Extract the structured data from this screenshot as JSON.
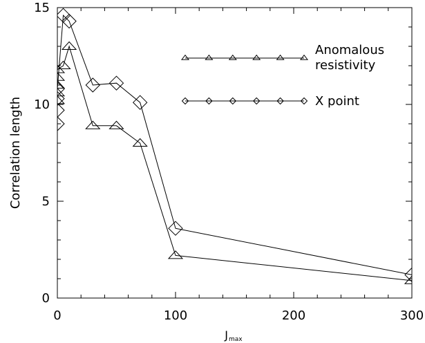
{
  "chart_data": {
    "type": "line",
    "title": "",
    "xlabel": "J",
    "xlabel_subscript": "max",
    "ylabel": "Correlation length",
    "xlim": [
      0,
      300
    ],
    "ylim": [
      0,
      15
    ],
    "xticks": [
      0,
      100,
      200,
      300
    ],
    "yticks": [
      0,
      5,
      10,
      15
    ],
    "xtick_labels": [
      "0",
      "100",
      "200",
      "300"
    ],
    "ytick_labels": [
      "0",
      "5",
      "10",
      "15"
    ],
    "grid": false,
    "legend_position": "top-right",
    "series": [
      {
        "name": "Anomalous resistivity",
        "marker": "triangle",
        "x": [
          0,
          0,
          0,
          0,
          0,
          5,
          10,
          30,
          50,
          70,
          100,
          300
        ],
        "y": [
          10.2,
          10.6,
          11.0,
          11.4,
          11.8,
          12.0,
          13.0,
          8.9,
          8.9,
          8.0,
          2.2,
          0.9
        ]
      },
      {
        "name": "X point",
        "marker": "diamond",
        "x": [
          0,
          0,
          0,
          0,
          5,
          10,
          30,
          50,
          70,
          100,
          300
        ],
        "y": [
          9.0,
          9.7,
          10.3,
          10.8,
          14.6,
          14.3,
          11.0,
          11.1,
          10.1,
          3.6,
          1.2
        ]
      }
    ]
  }
}
